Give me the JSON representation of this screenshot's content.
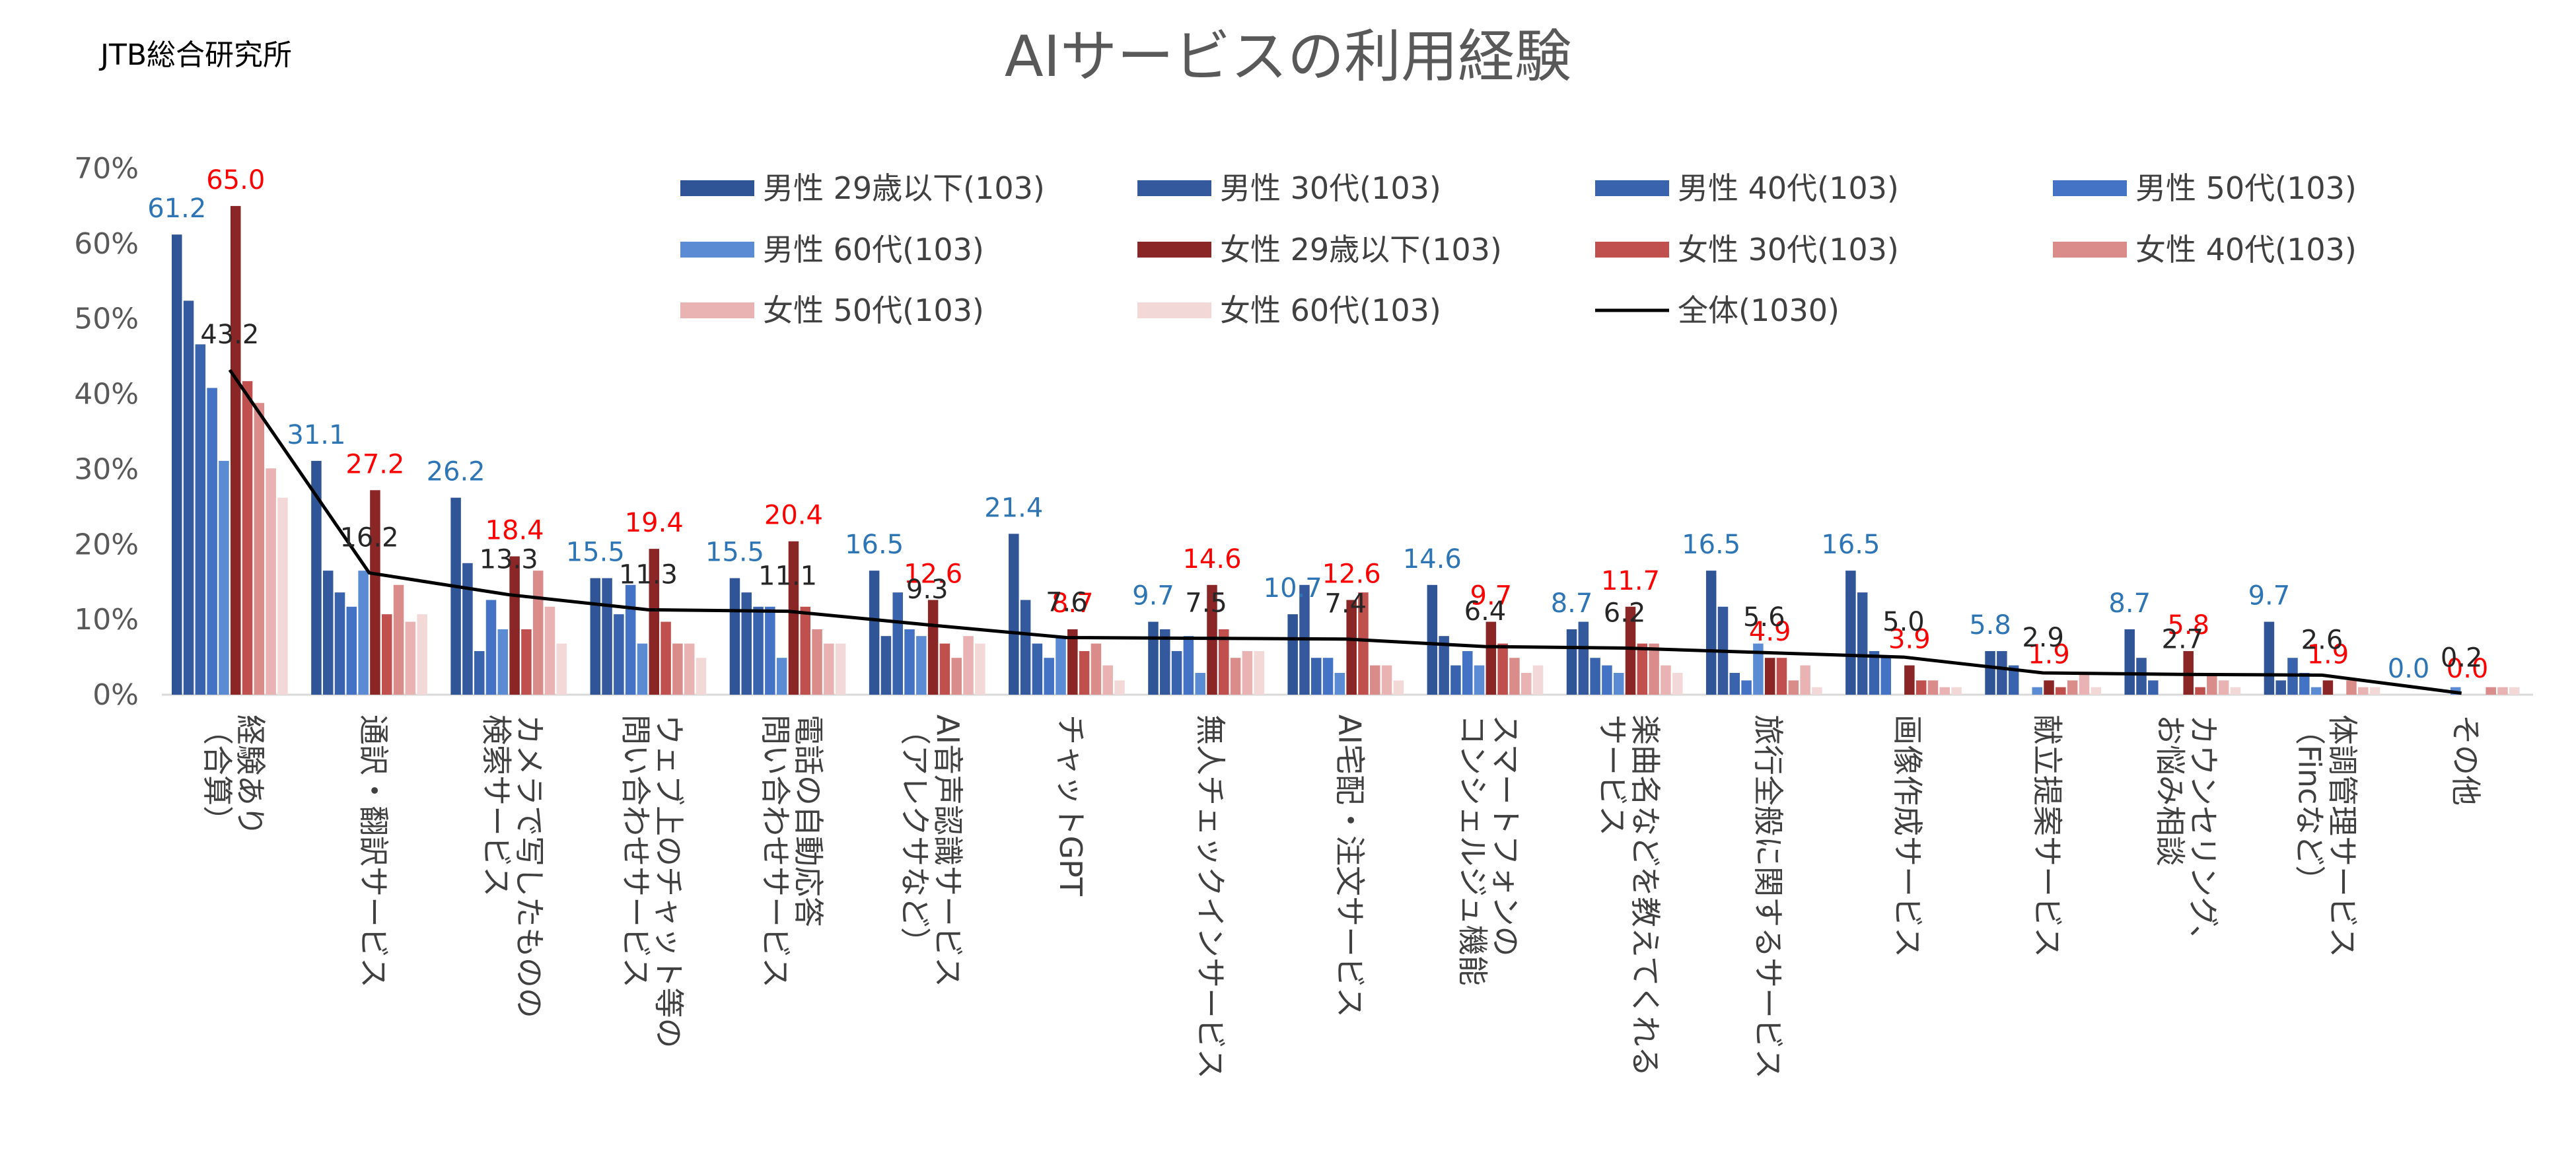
{
  "source_label": "JTB総合研究所",
  "chart_data": {
    "type": "bar",
    "title": "AIサービスの利用経験",
    "ylim": [
      0,
      70
    ],
    "y_ticks": [
      "0%",
      "10%",
      "20%",
      "30%",
      "40%",
      "50%",
      "60%",
      "70%"
    ],
    "categories": [
      [
        "経験あり",
        "（合算）"
      ],
      [
        "通訳・翻訳サービス"
      ],
      [
        "カメラで写したものの",
        "検索サービス"
      ],
      [
        "ウェブ上のチャット等の",
        "問い合わせサービス"
      ],
      [
        "電話の自動応答",
        "問い合わせサービス"
      ],
      [
        "AI音声認識サービス",
        "（アレクサなど）"
      ],
      [
        "チャットGPT"
      ],
      [
        "無人チェックインサービス"
      ],
      [
        "AI宅配・注文サービス"
      ],
      [
        "スマートフォンの",
        "コンシェルジュ機能"
      ],
      [
        "楽曲名などを教えてくれる",
        "サービス"
      ],
      [
        "旅行全般に関するサービス"
      ],
      [
        "画像作成サービス"
      ],
      [
        "献立提案サービス"
      ],
      [
        "カウンセリング、",
        "お悩み相談"
      ],
      [
        "体調管理サービス",
        "（Fincなど）"
      ],
      [
        "その他"
      ]
    ],
    "series": [
      {
        "name": "男性 29歳以下(103)",
        "color": "#2f5597",
        "values": [
          61.2,
          31.1,
          26.2,
          15.5,
          15.5,
          16.5,
          21.4,
          9.7,
          10.7,
          14.6,
          8.7,
          16.5,
          16.5,
          5.8,
          8.7,
          9.7,
          0.0
        ]
      },
      {
        "name": "男性 30代(103)",
        "color": "#34599d",
        "values": [
          52.4,
          16.5,
          17.5,
          15.5,
          13.6,
          7.8,
          12.6,
          8.7,
          14.6,
          7.8,
          9.7,
          11.7,
          13.6,
          5.8,
          4.9,
          1.9,
          0.0
        ]
      },
      {
        "name": "男性 40代(103)",
        "color": "#3a63ad",
        "values": [
          46.6,
          13.6,
          5.8,
          10.7,
          11.7,
          13.6,
          6.8,
          5.8,
          4.9,
          3.9,
          4.9,
          2.9,
          5.8,
          3.9,
          1.9,
          4.9,
          0.0
        ]
      },
      {
        "name": "男性 50代(103)",
        "color": "#4472c4",
        "values": [
          40.8,
          11.7,
          12.6,
          14.6,
          11.7,
          8.7,
          4.9,
          7.8,
          4.9,
          5.8,
          3.9,
          1.9,
          4.9,
          0.0,
          0.0,
          2.9,
          0.0
        ]
      },
      {
        "name": "男性 60代(103)",
        "color": "#5b8bd3",
        "values": [
          31.1,
          16.5,
          8.7,
          6.8,
          4.9,
          7.8,
          7.8,
          2.9,
          2.9,
          3.9,
          2.9,
          6.8,
          0.0,
          1.0,
          0.0,
          1.0,
          1.0
        ]
      },
      {
        "name": "女性 29歳以下(103)",
        "color": "#8b2626",
        "values": [
          65.0,
          27.2,
          18.4,
          19.4,
          20.4,
          12.6,
          8.7,
          14.6,
          12.6,
          9.7,
          11.7,
          4.9,
          3.9,
          1.9,
          5.8,
          1.9,
          0.0
        ]
      },
      {
        "name": "女性 30代(103)",
        "color": "#c0504d",
        "values": [
          41.7,
          10.7,
          8.7,
          9.7,
          11.7,
          6.8,
          5.8,
          8.7,
          13.6,
          6.8,
          6.8,
          4.9,
          1.9,
          1.0,
          1.0,
          0.0,
          0.0
        ]
      },
      {
        "name": "女性 40代(103)",
        "color": "#d98c8a",
        "values": [
          38.8,
          14.6,
          16.5,
          6.8,
          8.7,
          4.9,
          6.8,
          4.9,
          3.9,
          4.9,
          6.8,
          1.9,
          1.9,
          1.9,
          2.9,
          1.9,
          1.0
        ]
      },
      {
        "name": "女性 50代(103)",
        "color": "#e8b3b2",
        "values": [
          30.1,
          9.7,
          11.7,
          6.8,
          6.8,
          7.8,
          3.9,
          5.8,
          3.9,
          2.9,
          3.9,
          3.9,
          1.0,
          2.9,
          1.9,
          1.0,
          1.0
        ]
      },
      {
        "name": "女性 60代(103)",
        "color": "#f2d9d8",
        "values": [
          26.2,
          10.7,
          6.8,
          4.9,
          6.8,
          6.8,
          1.9,
          5.8,
          1.9,
          3.9,
          2.9,
          1.0,
          1.0,
          1.0,
          1.0,
          1.0,
          1.0
        ]
      }
    ],
    "total_series": {
      "name": "全体(1030)",
      "color": "#000000",
      "values": [
        43.2,
        16.2,
        13.3,
        11.3,
        11.1,
        9.3,
        7.6,
        7.5,
        7.4,
        6.4,
        6.2,
        5.6,
        5.0,
        2.9,
        2.7,
        2.6,
        0.2
      ]
    },
    "data_labels": {
      "male_29_color": "#2e75b6",
      "female_29_color": "#ff0000",
      "total_color": "#262626",
      "male_29": [
        "61.2",
        "31.1",
        "26.2",
        "15.5",
        "15.5",
        "16.5",
        "21.4",
        "9.7",
        "10.7",
        "14.6",
        "8.7",
        "16.5",
        "16.5",
        "5.8",
        "8.7",
        "9.7",
        "0.0"
      ],
      "female_29": [
        "65.0",
        "27.2",
        "18.4",
        "19.4",
        "20.4",
        "12.6",
        "8.7",
        "14.6",
        "12.6",
        "9.7",
        "11.7",
        "4.9",
        "3.9",
        "1.9",
        "5.8",
        "1.9",
        "0.0"
      ],
      "total": [
        "43.2",
        "16.2",
        "13.3",
        "11.3",
        "11.1",
        "9.3",
        "7.6",
        "7.5",
        "7.4",
        "6.4",
        "6.2",
        "5.6",
        "5.0",
        "2.9",
        "2.7",
        "2.6",
        "0.2"
      ]
    },
    "legend_position": "top-right",
    "grid": false
  }
}
